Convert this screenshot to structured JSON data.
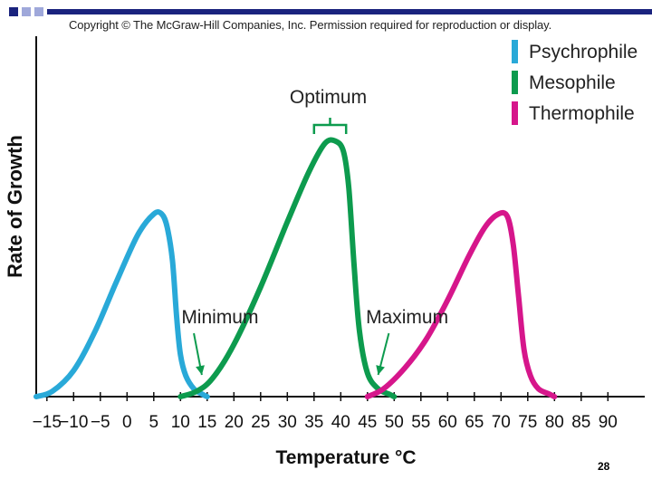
{
  "slide": {
    "copyright": "Copyright © The McGraw-Hill Companies, Inc. Permission required for reproduction or display.",
    "page_number": "28",
    "bar_colors": [
      "#1a237e",
      "#9fa8da"
    ]
  },
  "chart_data": {
    "type": "line",
    "title": "",
    "xlabel": "Temperature °C",
    "ylabel": "Rate of Growth",
    "xlim": [
      -17,
      95
    ],
    "ylim": [
      0,
      100
    ],
    "x_ticks": [
      -15,
      -10,
      -5,
      0,
      5,
      10,
      15,
      20,
      25,
      30,
      35,
      40,
      45,
      50,
      55,
      60,
      65,
      70,
      75,
      80,
      85,
      90
    ],
    "x_tick_labels": [
      "−15",
      "−10",
      "−5",
      "0",
      "5",
      "10",
      "15",
      "20",
      "25",
      "30",
      "35",
      "40",
      "45",
      "50",
      "55",
      "60",
      "65",
      "70",
      "75",
      "80",
      "85",
      "90"
    ],
    "legend_position": "top-right",
    "series": [
      {
        "name": "Psychrophile",
        "color": "#29a9d8",
        "x": [
          -17,
          -14,
          -10,
          -6,
          -2,
          2,
          5,
          6.5,
          7.5,
          8.5,
          9.3,
          10,
          11,
          12.5,
          14,
          15
        ],
        "y": [
          0,
          2,
          10,
          25,
          44,
          62,
          70,
          70,
          65,
          52,
          30,
          16,
          8,
          3,
          1,
          0
        ]
      },
      {
        "name": "Mesophile",
        "color": "#0d9b4e",
        "x": [
          10,
          13,
          16,
          20,
          25,
          30,
          34,
          37,
          39,
          40.5,
          41.5,
          42.5,
          43.5,
          45,
          47,
          49,
          50
        ],
        "y": [
          0,
          2,
          7,
          20,
          42,
          67,
          86,
          97,
          98,
          94,
          80,
          50,
          25,
          9,
          3,
          1,
          0
        ]
      },
      {
        "name": "Thermophile",
        "color": "#d6168b",
        "x": [
          45,
          48,
          52,
          56,
          60,
          64,
          67,
          69.5,
          71.2,
          72.3,
          73.3,
          74.3,
          75.5,
          77,
          79,
          80
        ],
        "y": [
          0,
          3,
          11,
          22,
          37,
          54,
          65,
          70,
          69,
          58,
          38,
          18,
          8,
          3,
          1,
          0
        ]
      }
    ],
    "annotations": [
      {
        "text": "Optimum",
        "x": 38,
        "y": 98
      },
      {
        "text": "Minimum",
        "x": 14,
        "y": 2
      },
      {
        "text": "Maximum",
        "x": 47,
        "y": 2
      }
    ]
  }
}
